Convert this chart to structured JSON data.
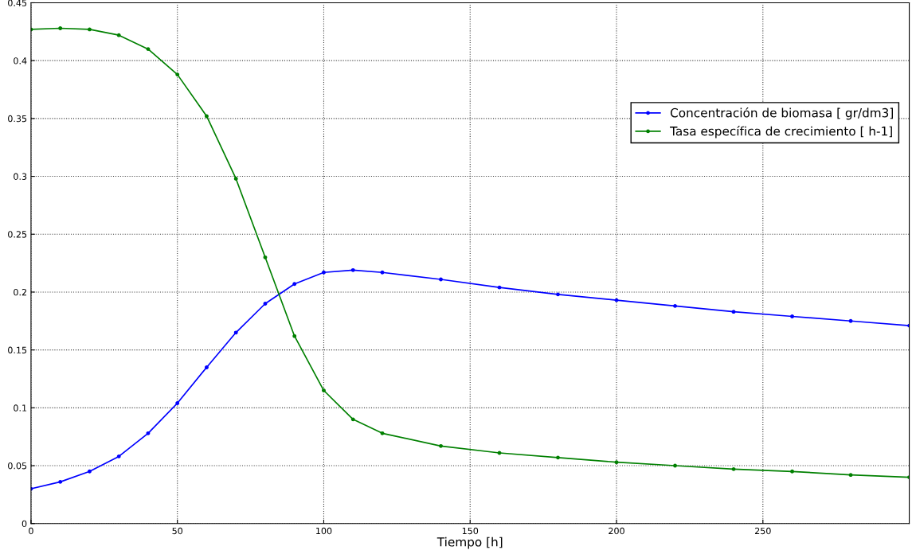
{
  "chart_data": {
    "type": "line",
    "xlabel": "Tiempo [h]",
    "xlim": [
      0,
      300
    ],
    "xticks": [
      0,
      50,
      100,
      150,
      200,
      250
    ],
    "ylim": [
      0,
      0.45
    ],
    "yticks": [
      0,
      0.05,
      0.1,
      0.15,
      0.2,
      0.25,
      0.3,
      0.35,
      0.4,
      0.45
    ],
    "grid": true,
    "legend": "right",
    "marker": "circle",
    "line_style": "solid",
    "series": [
      {
        "name": "Concentración de biomasa [ gr/dm3]",
        "color": "#0000ff",
        "x": [
          0,
          10,
          20,
          30,
          40,
          50,
          60,
          70,
          80,
          90,
          100,
          110,
          120,
          140,
          160,
          180,
          200,
          220,
          240,
          260,
          280,
          300
        ],
        "values": [
          0.03,
          0.036,
          0.045,
          0.058,
          0.078,
          0.104,
          0.135,
          0.165,
          0.19,
          0.207,
          0.217,
          0.219,
          0.217,
          0.211,
          0.204,
          0.198,
          0.193,
          0.188,
          0.183,
          0.179,
          0.175,
          0.171
        ]
      },
      {
        "name": "Tasa específica de crecimiento [ h-1]",
        "color": "#008000",
        "x": [
          0,
          10,
          20,
          30,
          40,
          50,
          60,
          70,
          80,
          90,
          100,
          110,
          120,
          140,
          160,
          180,
          200,
          220,
          240,
          260,
          280,
          300
        ],
        "values": [
          0.427,
          0.428,
          0.427,
          0.422,
          0.41,
          0.388,
          0.352,
          0.298,
          0.23,
          0.162,
          0.115,
          0.09,
          0.078,
          0.067,
          0.061,
          0.057,
          0.053,
          0.05,
          0.047,
          0.045,
          0.042,
          0.04
        ]
      }
    ]
  }
}
